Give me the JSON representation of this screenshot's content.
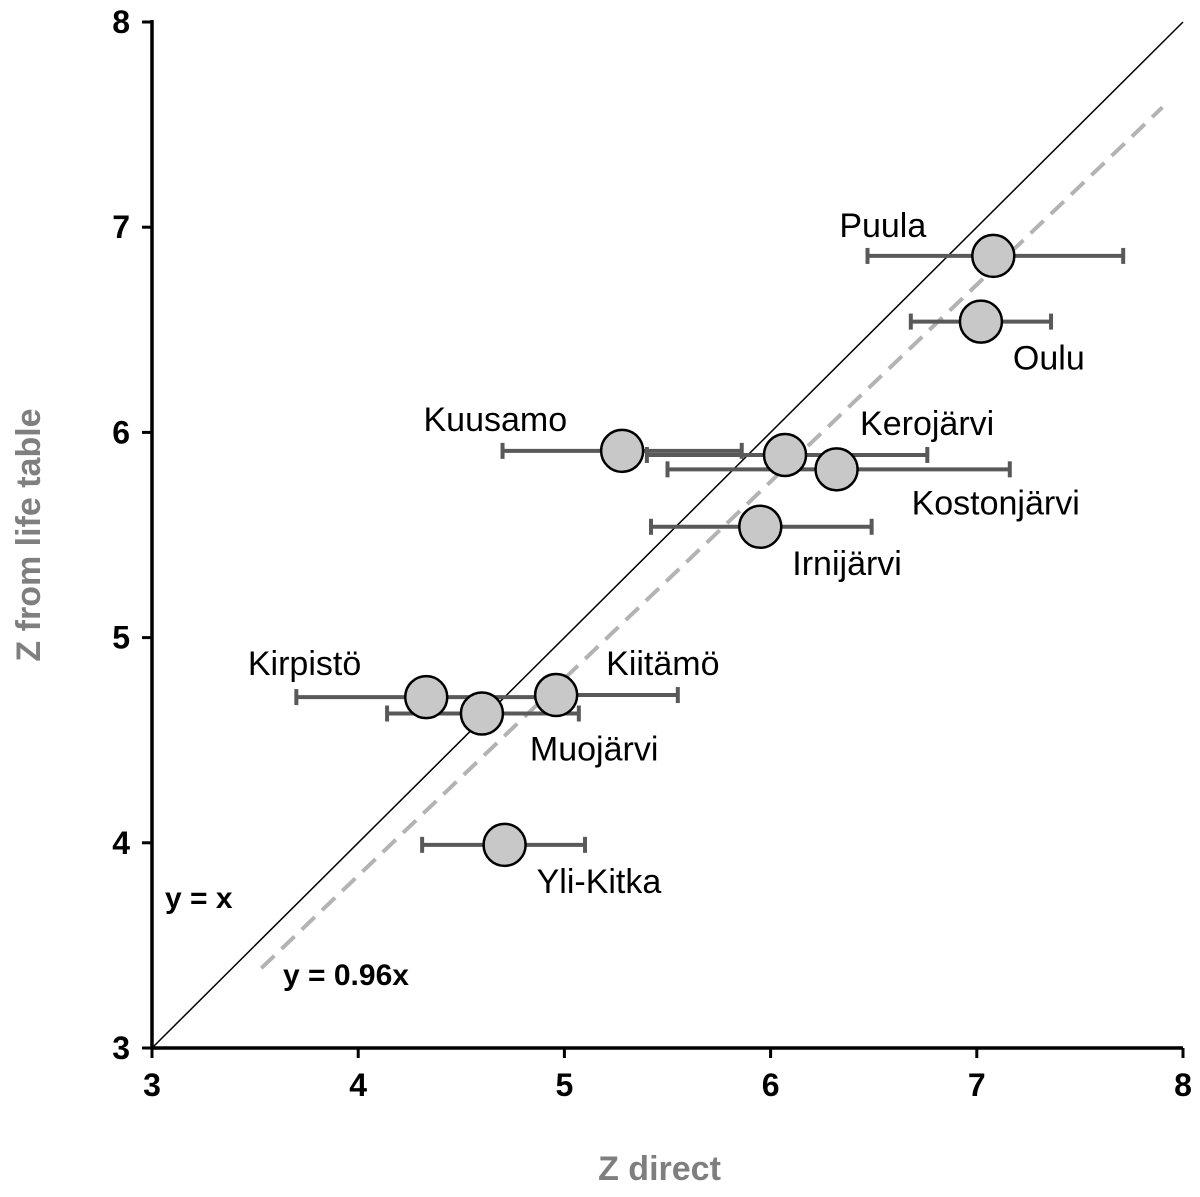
{
  "chart_data": {
    "type": "scatter",
    "title": "",
    "xlabel": "Z direct",
    "ylabel": "Z from life table",
    "xlim": [
      3,
      8
    ],
    "ylim": [
      3,
      8
    ],
    "xticks": [
      "3",
      "4",
      "5",
      "6",
      "7",
      "8"
    ],
    "yticks": [
      "3",
      "4",
      "5",
      "6",
      "7",
      "8"
    ],
    "grid": false,
    "points": [
      {
        "name": "Puula",
        "x": 7.08,
        "y": 6.86,
        "xerr": [
          6.47,
          7.71
        ],
        "label_pos": "upper-left"
      },
      {
        "name": "Oulu",
        "x": 7.02,
        "y": 6.54,
        "xerr": [
          6.68,
          7.36
        ],
        "label_pos": "lower-right"
      },
      {
        "name": "Kuusamo",
        "x": 5.28,
        "y": 5.91,
        "xerr": [
          4.7,
          5.86
        ],
        "label_pos": "upper-left"
      },
      {
        "name": "Kerojärvi",
        "x": 6.07,
        "y": 5.89,
        "xerr": [
          5.4,
          6.76
        ],
        "label_pos": "upper-right"
      },
      {
        "name": "Kostonjärvi",
        "x": 6.32,
        "y": 5.82,
        "xerr": [
          5.5,
          7.16
        ],
        "label_pos": "lower-right"
      },
      {
        "name": "Irnijärvi",
        "x": 5.95,
        "y": 5.54,
        "xerr": [
          5.42,
          6.49
        ],
        "label_pos": "lower-right"
      },
      {
        "name": "Kirpistö",
        "x": 4.33,
        "y": 4.71,
        "xerr": [
          3.7,
          4.95
        ],
        "label_pos": "upper-left"
      },
      {
        "name": "Kiitämö",
        "x": 4.96,
        "y": 4.72,
        "xerr": [
          4.87,
          5.55
        ],
        "label_pos": "upper-right"
      },
      {
        "name": "Muojärvi",
        "x": 4.6,
        "y": 4.63,
        "xerr": [
          4.14,
          5.07
        ],
        "label_pos": "lower-right"
      },
      {
        "name": "Yli-Kitka",
        "x": 4.71,
        "y": 3.99,
        "xerr": [
          4.31,
          5.1
        ],
        "label_pos": "lower-right"
      }
    ],
    "lines": [
      {
        "name": "y = x",
        "slope": 1.0,
        "x_range": [
          3,
          8
        ],
        "style": "solid",
        "color": "#000000"
      },
      {
        "name": "y = 0.96x",
        "slope": 0.96,
        "x_range": [
          3.53,
          7.9
        ],
        "style": "dashed",
        "color": "#b3b3b3"
      }
    ],
    "colors": {
      "marker_fill": "#c8c8c8",
      "marker_edge": "#000000",
      "errorbar": "#595959",
      "axis_title": "#7f7f7f"
    }
  }
}
